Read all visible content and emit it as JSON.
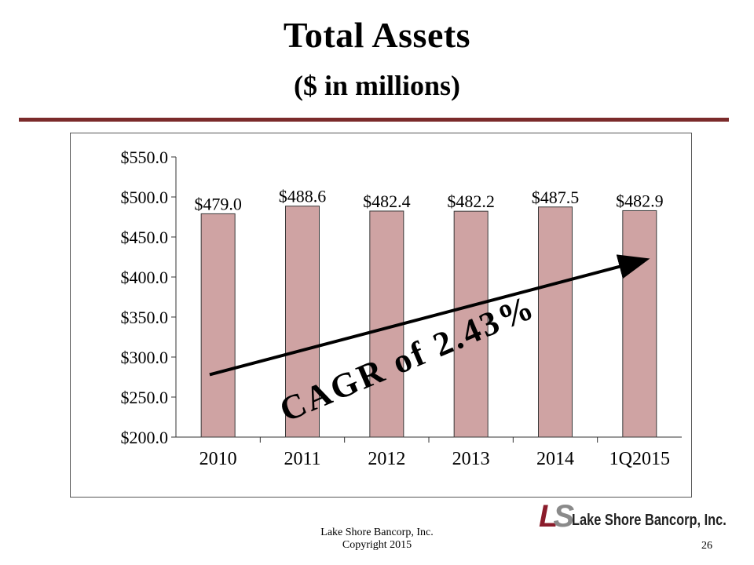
{
  "slide": {
    "title": "Total Assets",
    "subtitle": "($ in millions)",
    "footer_line1": "Lake Shore Bancorp, Inc.",
    "footer_line2": "Copyright 2015",
    "page_number": "26",
    "logo_mark_l": "L",
    "logo_mark_s": "S",
    "logo_text": "Lake Shore Bancorp, Inc."
  },
  "colors": {
    "rule": "#7b2b2b",
    "bar_fill": "#cfa3a3",
    "bar_stroke": "#3a3a3a"
  },
  "chart_data": {
    "type": "bar",
    "title": "Total Assets",
    "ylabel": "$ in millions",
    "xlabel": "",
    "categories": [
      "2010",
      "2011",
      "2012",
      "2013",
      "2014",
      "1Q2015"
    ],
    "values": [
      479.0,
      488.6,
      482.4,
      482.2,
      487.5,
      482.9
    ],
    "data_labels": [
      "$479.0",
      "$488.6",
      "$482.4",
      "$482.2",
      "$487.5",
      "$482.9"
    ],
    "ylim": [
      200,
      550
    ],
    "yticks": [
      200,
      250,
      300,
      350,
      400,
      450,
      500,
      550
    ],
    "ytick_labels": [
      "$200.0",
      "$250.0",
      "$300.0",
      "$350.0",
      "$400.0",
      "$450.0",
      "$500.0",
      "$550.0"
    ],
    "grid": false,
    "annotation": {
      "text": "CAGR of 2.43%",
      "arrow_from_value": 278,
      "arrow_to_value": 421
    }
  }
}
